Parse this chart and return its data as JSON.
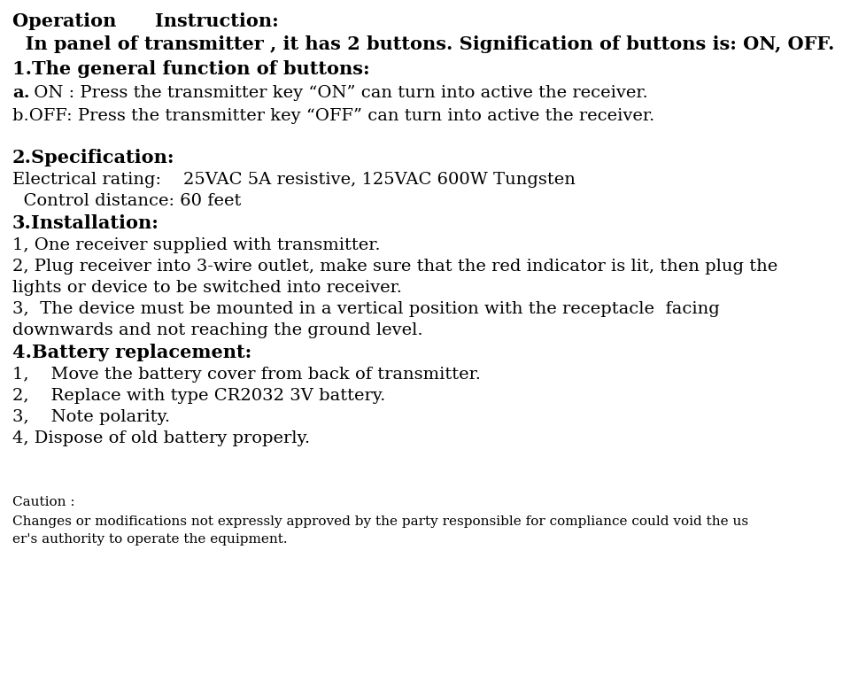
{
  "bg_color": "#ffffff",
  "title_line": "Operation      Instruction:",
  "subtitle": "  In panel of transmitter , it has 2 buttons. Signification of buttons is: ON, OFF.",
  "section1_header": "1.The general function of buttons:",
  "section1_a_bold": "a.",
  "section1_a_rest": " ON : Press the transmitter key “ON” can turn into active the receiver.",
  "section1_b": "b.OFF: Press the transmitter key “OFF” can turn into active the receiver.",
  "section2_header": "2.Specification:",
  "section2_elec": "Electrical rating:    25VAC 5A resistive, 125VAC 600W Tungsten",
  "section2_dist": "  Control distance: 60 feet",
  "section3_header": "3.Installation:",
  "section3_1": "1, One receiver supplied with transmitter.",
  "section3_2a": "2, Plug receiver into 3-wire outlet, make sure that the red indicator is lit, then plug the",
  "section3_2b": "lights or device to be switched into receiver.",
  "section3_3a": "3,  The device must be mounted in a vertical position with the receptacle  facing",
  "section3_3b": "downwards and not reaching the ground level.",
  "section4_header": "4.Battery replacement:",
  "section4_1": "1,    Move the battery cover from back of transmitter.",
  "section4_2": "2,    Replace with type CR2032 3V battery.",
  "section4_3": "3,    Note polarity.",
  "section4_4": "4, Dispose of old battery properly.",
  "caution_header": "Caution :",
  "caution_1": "Changes or modifications not expressly approved by the party responsible for compliance could void the us",
  "caution_2": "er's authority to operate the equipment."
}
